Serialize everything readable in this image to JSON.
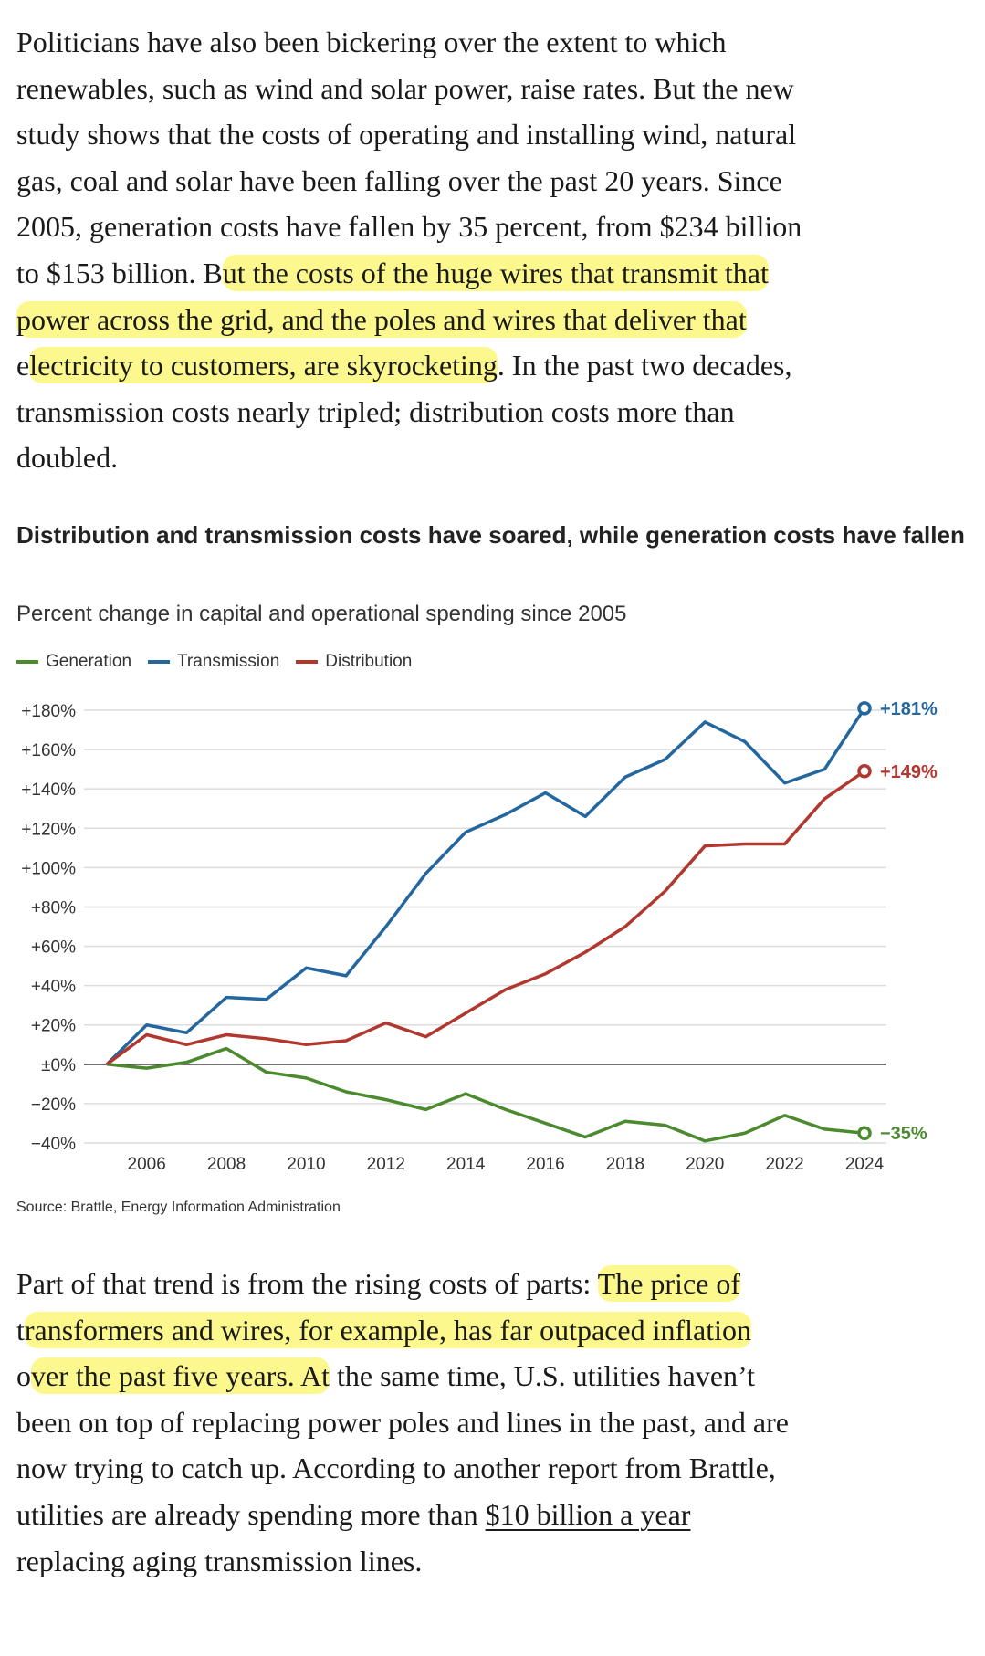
{
  "paragraph1": [
    [
      {
        "t": "Politicians have also been bickering over the extent to which"
      }
    ],
    [
      {
        "t": "renewables, such as wind and solar power, raise rates. But the new"
      }
    ],
    [
      {
        "t": "study shows that the costs of operating and installing wind, natural"
      }
    ],
    [
      {
        "t": "gas, coal and solar have been falling over the past 20 years. Since"
      }
    ],
    [
      {
        "t": "2005, generation costs have fallen by 35 percent, from $234 billion"
      }
    ],
    [
      {
        "t": "to $153 billion. B"
      },
      {
        "t": "ut the costs of the huge wires that transmit that",
        "hl": true
      }
    ],
    [
      {
        "t": "power across the grid, and the poles and wires that deliver that",
        "hl": true
      }
    ],
    [
      {
        "t": "e"
      },
      {
        "t": "lectricity to customers, are skyrocketing",
        "hl": true
      },
      {
        "t": ". In the past two decades,"
      }
    ],
    [
      {
        "t": "transmission costs nearly tripled; distribution costs more than"
      }
    ],
    [
      {
        "t": "doubled."
      }
    ]
  ],
  "paragraph2": [
    [
      {
        "t": "Part of that trend is from the rising costs of parts: "
      },
      {
        "t": "The price of",
        "hl": true
      }
    ],
    [
      {
        "t": "t"
      },
      {
        "t": "ransformers and wires, for example, has far outpaced inflation",
        "hl": true
      }
    ],
    [
      {
        "t": "o"
      },
      {
        "t": "ver the past five years. At",
        "hl": true
      },
      {
        "t": " the same time, U.S. utilities haven’t"
      }
    ],
    [
      {
        "t": "been on top of replacing power poles and lines in the past, and are"
      }
    ],
    [
      {
        "t": "now trying to catch up. According to another report from Brattle,"
      }
    ],
    [
      {
        "t": "utilities are already spending more than "
      },
      {
        "t": "$10 billion a year",
        "link": true
      }
    ],
    [
      {
        "t": "replacing aging transmission lines."
      }
    ]
  ],
  "chart_data": {
    "type": "line",
    "title": "Distribution and transmission costs have soared, while generation costs have fallen",
    "subtitle": "Percent change in capital and operational spending since 2005",
    "source": "Source: Brattle, Energy Information Administration",
    "x": [
      2005,
      2006,
      2007,
      2008,
      2009,
      2010,
      2011,
      2012,
      2013,
      2014,
      2015,
      2016,
      2017,
      2018,
      2019,
      2020,
      2021,
      2022,
      2023,
      2024
    ],
    "x_ticks": [
      "2006",
      "2008",
      "2010",
      "2012",
      "2014",
      "2016",
      "2018",
      "2020",
      "2022",
      "2024"
    ],
    "y_ticks": [
      {
        "v": 180,
        "l": "+180%"
      },
      {
        "v": 160,
        "l": "+160%"
      },
      {
        "v": 140,
        "l": "+140%"
      },
      {
        "v": 120,
        "l": "+120%"
      },
      {
        "v": 100,
        "l": "+100%"
      },
      {
        "v": 80,
        "l": "+80%"
      },
      {
        "v": 60,
        "l": "+60%"
      },
      {
        "v": 40,
        "l": "+40%"
      },
      {
        "v": 20,
        "l": "+20%"
      },
      {
        "v": 0,
        "l": "±0%"
      },
      {
        "v": -20,
        "l": "−20%"
      },
      {
        "v": -40,
        "l": "−40%"
      }
    ],
    "ylim": [
      -40,
      180
    ],
    "grid": true,
    "legend_position": "top-left",
    "series": [
      {
        "name": "Generation",
        "color": "#4b8a2e",
        "end_label": "−35%",
        "values": [
          0,
          -2,
          1,
          8,
          -4,
          -7,
          -14,
          -18,
          -23,
          -15,
          -23,
          -30,
          -37,
          -29,
          -31,
          -39,
          -35,
          -26,
          -33,
          -35
        ]
      },
      {
        "name": "Transmission",
        "color": "#24679f",
        "end_label": "+181%",
        "values": [
          0,
          20,
          16,
          34,
          33,
          49,
          45,
          70,
          97,
          118,
          127,
          138,
          126,
          146,
          155,
          174,
          164,
          143,
          150,
          181
        ]
      },
      {
        "name": "Distribution",
        "color": "#b0382f",
        "end_label": "+149%",
        "values": [
          0,
          15,
          10,
          15,
          13,
          10,
          12,
          21,
          14,
          26,
          38,
          46,
          57,
          70,
          88,
          111,
          112,
          112,
          135,
          149
        ]
      }
    ]
  }
}
